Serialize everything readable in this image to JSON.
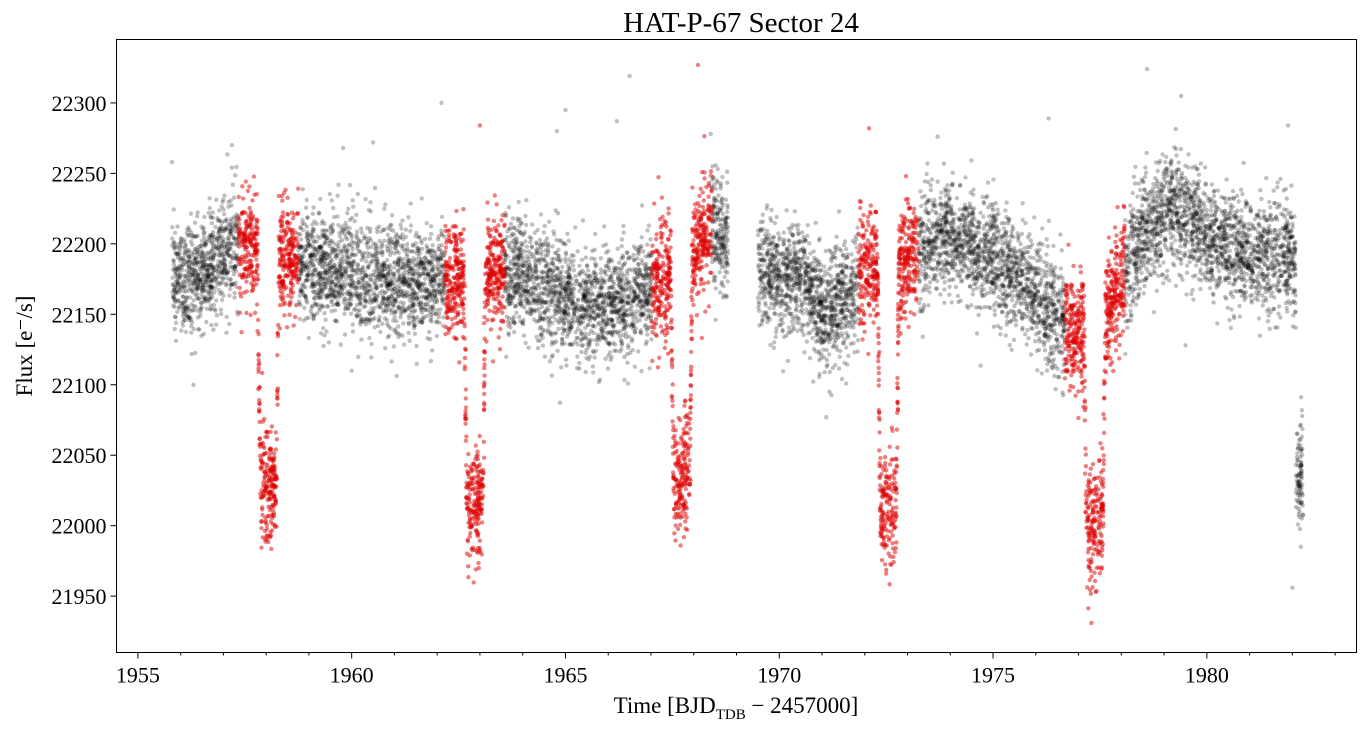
{
  "chart_data": {
    "type": "scatter",
    "title": "HAT-P-67 Sector 24",
    "xlabel": {
      "prefix": "Time [BJD",
      "subscript": "TDB",
      "suffix": " − 2457000]"
    },
    "ylabel": "Flux [e⁻/s]",
    "xlim": [
      1954.5,
      1983.5
    ],
    "ylim": [
      21910,
      22345
    ],
    "x_ticks": [
      1955,
      1960,
      1965,
      1970,
      1975,
      1980
    ],
    "x_tick_labels": [
      "1955",
      "1960",
      "1965",
      "1970",
      "1975",
      "1980"
    ],
    "y_ticks": [
      21950,
      22000,
      22050,
      22100,
      22150,
      22200,
      22250,
      22300
    ],
    "y_tick_labels": [
      "21950",
      "22000",
      "22050",
      "22100",
      "22150",
      "22200",
      "22250",
      "22300"
    ],
    "grid": false,
    "legend": "none",
    "series": [
      {
        "color": "#000000",
        "alpha": 0.25,
        "marker": "circle",
        "data_gap": [
          1968.8,
          1969.5
        ],
        "baseline": [
          [
            1955.8,
            22170
          ],
          [
            1956.5,
            22180
          ],
          [
            1957.3,
            22200
          ],
          [
            1958.5,
            22190
          ],
          [
            1959.5,
            22180
          ],
          [
            1961.0,
            22175
          ],
          [
            1962.0,
            22172
          ],
          [
            1963.5,
            22182
          ],
          [
            1964.5,
            22170
          ],
          [
            1965.5,
            22155
          ],
          [
            1966.5,
            22160
          ],
          [
            1967.5,
            22178
          ],
          [
            1968.4,
            22212
          ],
          [
            1968.7,
            22205
          ],
          [
            1969.6,
            22180
          ],
          [
            1970.0,
            22175
          ],
          [
            1970.5,
            22180
          ],
          [
            1971.0,
            22150
          ],
          [
            1971.5,
            22160
          ],
          [
            1972.0,
            22182
          ],
          [
            1973.0,
            22190
          ],
          [
            1974.0,
            22205
          ],
          [
            1975.0,
            22190
          ],
          [
            1976.0,
            22165
          ],
          [
            1977.0,
            22130
          ],
          [
            1977.8,
            22160
          ],
          [
            1978.5,
            22205
          ],
          [
            1979.2,
            22228
          ],
          [
            1980.0,
            22205
          ],
          [
            1981.0,
            22192
          ],
          [
            1982.0,
            22190
          ]
        ],
        "scatter_sd": 20,
        "points_per_day": 460,
        "final_dip": {
          "t": 1982.2,
          "depth": 150,
          "halfwidth": 0.12
        },
        "outliers": [
          [
            1955.8,
            22258
          ],
          [
            1956.3,
            22100
          ],
          [
            1957.2,
            22270
          ],
          [
            1959.8,
            22268
          ],
          [
            1960.0,
            22110
          ],
          [
            1960.5,
            22272
          ],
          [
            1962.1,
            22300
          ],
          [
            1964.8,
            22280
          ],
          [
            1965.0,
            22295
          ],
          [
            1966.5,
            22319
          ],
          [
            1966.2,
            22287
          ],
          [
            1968.4,
            22278
          ],
          [
            1971.1,
            22077
          ],
          [
            1976.3,
            22289
          ],
          [
            1978.6,
            22324
          ],
          [
            1979.4,
            22305
          ],
          [
            1979.5,
            22128
          ],
          [
            1981.9,
            22284
          ],
          [
            1982.0,
            21956
          ],
          [
            1982.2,
            21985
          ]
        ]
      },
      {
        "color": "#dd0000",
        "alpha": 0.5,
        "marker": "circle",
        "transits": [
          {
            "t0": 1958.05,
            "depth": 165
          },
          {
            "t0": 1962.88,
            "depth": 162
          },
          {
            "t0": 1967.72,
            "depth": 150
          },
          {
            "t0": 1972.55,
            "depth": 175
          },
          {
            "t0": 1977.38,
            "depth": 140
          }
        ],
        "transit_halfwidth": 0.25,
        "window_halfwidth": 0.7,
        "outliers": [
          [
            1958.1,
            21992
          ],
          [
            1962.9,
            21969
          ],
          [
            1967.8,
            22003
          ],
          [
            1972.5,
            21966
          ],
          [
            1977.3,
            21931
          ],
          [
            1977.4,
            21953
          ],
          [
            1963.0,
            22284
          ],
          [
            1968.1,
            22327
          ],
          [
            1972.1,
            22282
          ]
        ]
      }
    ]
  }
}
